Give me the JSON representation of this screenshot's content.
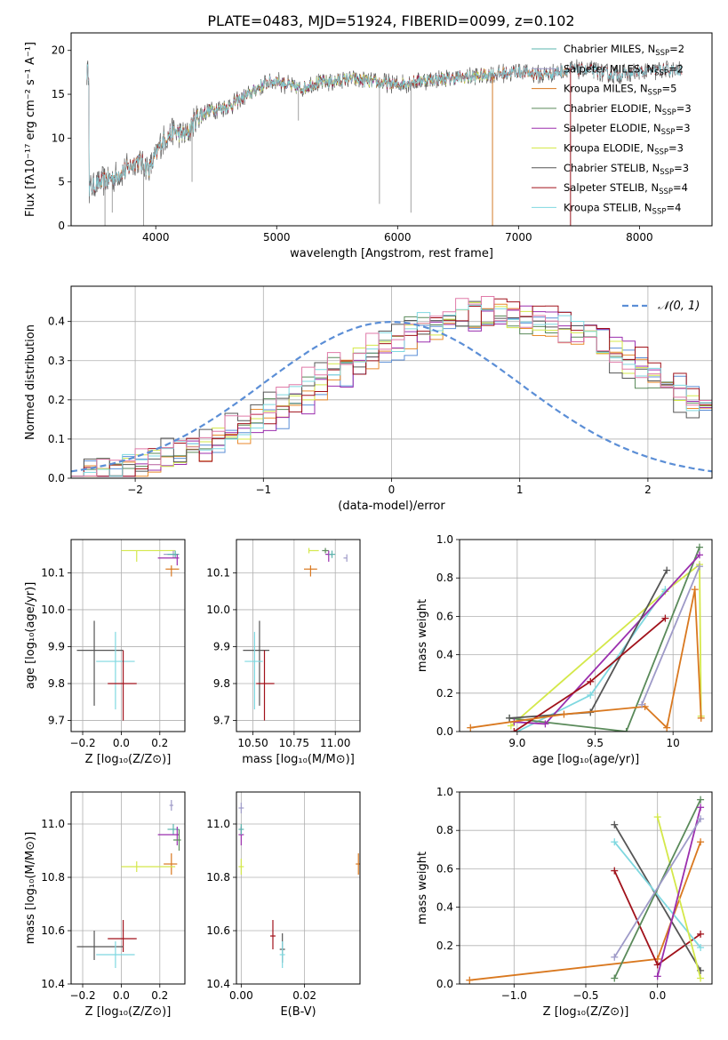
{
  "figure_title": "PLATE=0483, MJD=51924, FIBERID=0099, z=0.102",
  "colors": {
    "Chabrier MILES": "#5ab4ac",
    "Salpeter MILES": "#9e9ac8",
    "Kroupa MILES": "#d9781f",
    "Chabrier ELODIE": "#5a8a5a",
    "Salpeter ELODIE": "#9b2fae",
    "Kroupa ELODIE": "#d4e84a",
    "Chabrier STELIB": "#555555",
    "Salpeter STELIB": "#a1121b",
    "Kroupa STELIB": "#7fd8e0",
    "hist_blue": "#5b8ed6",
    "hist_pink": "#e07aa8",
    "hist_orange": "#e88a2c"
  },
  "chart_data": [
    {
      "id": "spectrum",
      "type": "line",
      "xlabel": "wavelength [Angstrom, rest frame]",
      "ylabel": "Flux [fλ10⁻¹⁷ erg cm⁻² s⁻¹ A⁻¹]",
      "xlim": [
        3300,
        8600
      ],
      "ylim": [
        0,
        22
      ],
      "xticks": [
        4000,
        5000,
        6000,
        7000,
        8000
      ],
      "yticks": [
        0,
        5,
        10,
        15,
        20
      ],
      "grid": false,
      "legend_position": "top-right",
      "continuum": [
        [
          3450,
          4.2
        ],
        [
          3550,
          5.0
        ],
        [
          3650,
          5.5
        ],
        [
          3750,
          6.4
        ],
        [
          3850,
          7.5
        ],
        [
          3950,
          6.5
        ],
        [
          4050,
          9.6
        ],
        [
          4150,
          10.8
        ],
        [
          4250,
          10.3
        ],
        [
          4350,
          12.5
        ],
        [
          4450,
          13.2
        ],
        [
          4600,
          13.6
        ],
        [
          4750,
          14.8
        ],
        [
          4900,
          16.2
        ],
        [
          5000,
          16.6
        ],
        [
          5100,
          16.0
        ],
        [
          5200,
          15.6
        ],
        [
          5300,
          16.2
        ],
        [
          5400,
          16.4
        ],
        [
          5500,
          16.5
        ],
        [
          5600,
          16.8
        ],
        [
          5800,
          16.4
        ],
        [
          6000,
          16.1
        ],
        [
          6200,
          16.6
        ],
        [
          6400,
          16.8
        ],
        [
          6600,
          17.0
        ],
        [
          6800,
          17.3
        ],
        [
          7000,
          17.6
        ],
        [
          7200,
          17.2
        ],
        [
          7400,
          17.8
        ],
        [
          7600,
          17.7
        ],
        [
          7800,
          17.2
        ],
        [
          8000,
          17.5
        ],
        [
          8200,
          17.8
        ],
        [
          8350,
          17.6
        ]
      ],
      "dropouts": [
        [
          3580,
          0
        ],
        [
          3640,
          1.5
        ],
        [
          3900,
          0
        ],
        [
          4300,
          5.0
        ],
        [
          5180,
          12.0
        ],
        [
          5850,
          2.5
        ],
        [
          6110,
          1.5
        ],
        [
          6785,
          0
        ],
        [
          7430,
          0
        ]
      ],
      "legend": [
        {
          "label": "Chabrier MILES, N",
          "sub": "SSP",
          "n": "=2"
        },
        {
          "label": "Salpeter MILES, N",
          "sub": "SSP",
          "n": "=2"
        },
        {
          "label": "Kroupa MILES, N",
          "sub": "SSP",
          "n": "=5"
        },
        {
          "label": "Chabrier ELODIE, N",
          "sub": "SSP",
          "n": "=3"
        },
        {
          "label": "Salpeter ELODIE, N",
          "sub": "SSP",
          "n": "=3"
        },
        {
          "label": "Kroupa ELODIE, N",
          "sub": "SSP",
          "n": "=3"
        },
        {
          "label": "Chabrier STELIB, N",
          "sub": "SSP",
          "n": "=3"
        },
        {
          "label": "Salpeter STELIB, N",
          "sub": "SSP",
          "n": "=4"
        },
        {
          "label": "Kroupa STELIB, N",
          "sub": "SSP",
          "n": "=4"
        }
      ]
    },
    {
      "id": "residuals",
      "type": "histogram",
      "xlabel": "(data-model)/error",
      "ylabel": "Normed distribution",
      "xlim": [
        -2.5,
        2.5
      ],
      "ylim": [
        0,
        0.49
      ],
      "xticks": [
        -2,
        -1,
        0,
        1,
        2
      ],
      "yticks": [
        0.0,
        0.1,
        0.2,
        0.3,
        0.4
      ],
      "grid": true,
      "legend_position": "top-right",
      "legend": "𝒩(0, 1)",
      "bin_width": 0.1,
      "bin_start": -2.5,
      "base_profile": [
        0.02,
        0.022,
        0.027,
        0.03,
        0.036,
        0.04,
        0.049,
        0.055,
        0.065,
        0.072,
        0.085,
        0.1,
        0.115,
        0.13,
        0.15,
        0.17,
        0.19,
        0.2,
        0.22,
        0.24,
        0.26,
        0.28,
        0.3,
        0.31,
        0.33,
        0.35,
        0.37,
        0.385,
        0.395,
        0.405,
        0.41,
        0.415,
        0.42,
        0.42,
        0.415,
        0.41,
        0.405,
        0.4,
        0.38,
        0.37,
        0.355,
        0.34,
        0.32,
        0.3,
        0.28,
        0.26,
        0.24,
        0.22,
        0.2,
        0.18,
        0.16,
        0.14,
        0.125,
        0.11,
        0.095,
        0.085,
        0.075,
        0.065,
        0.055,
        0.05,
        0.045,
        0.04,
        0.035,
        0.032,
        0.03,
        0.028,
        0.025,
        0.023,
        0.02,
        0.018,
        0.015
      ]
    },
    {
      "id": "age-vs-Z",
      "type": "errorbar",
      "xlabel": "Z [log₁₀(Z/Z⊙)]",
      "ylabel": "age  [log₁₀(age/yr)]",
      "xlim": [
        -0.26,
        0.33
      ],
      "ylim": [
        9.67,
        10.19
      ],
      "xticks": [
        -0.2,
        0.0,
        0.2
      ],
      "yticks": [
        9.7,
        9.8,
        9.9,
        10.0,
        10.1
      ],
      "grid": true,
      "points": [
        {
          "s": "Kroupa ELODIE",
          "x": 0.08,
          "y": 10.16,
          "dxl": 0.08,
          "dxh": 0.2,
          "dyl": 0.03,
          "dyh": 0.0
        },
        {
          "s": "Salpeter MILES",
          "x": 0.27,
          "y": 10.15,
          "dxl": 0.05,
          "dxh": 0.02,
          "dyl": 0.01,
          "dyh": 0.01
        },
        {
          "s": "Chabrier MILES",
          "x": 0.28,
          "y": 10.15,
          "dxl": 0.04,
          "dxh": 0.02,
          "dyl": 0.01,
          "dyh": 0.01
        },
        {
          "s": "Salpeter ELODIE",
          "x": 0.29,
          "y": 10.14,
          "dxl": 0.1,
          "dxh": 0.01,
          "dyl": 0.02,
          "dyh": 0.01
        },
        {
          "s": "Kroupa MILES",
          "x": 0.26,
          "y": 10.11,
          "dxl": 0.03,
          "dxh": 0.04,
          "dyl": 0.02,
          "dyh": 0.01
        },
        {
          "s": "Chabrier STELIB",
          "x": -0.14,
          "y": 9.89,
          "dxl": 0.09,
          "dxh": 0.15,
          "dyl": 0.15,
          "dyh": 0.08
        },
        {
          "s": "Kroupa STELIB",
          "x": -0.03,
          "y": 9.86,
          "dxl": 0.1,
          "dxh": 0.1,
          "dyl": 0.13,
          "dyh": 0.08
        },
        {
          "s": "Salpeter STELIB",
          "x": 0.01,
          "y": 9.8,
          "dxl": 0.08,
          "dxh": 0.07,
          "dyl": 0.1,
          "dyh": 0.09
        }
      ]
    },
    {
      "id": "age-vs-mass",
      "type": "errorbar",
      "xlabel": "mass [log₁₀(M/M⊙)]",
      "ylabel": "",
      "xlim": [
        10.4,
        11.15
      ],
      "ylim": [
        9.67,
        10.19
      ],
      "xticks": [
        10.5,
        10.75,
        11.0
      ],
      "xtick_labels": [
        "10.50",
        "10.75",
        "11.00"
      ],
      "yticks": [
        9.7,
        9.8,
        9.9,
        10.0,
        10.1
      ],
      "grid": true,
      "points": [
        {
          "s": "Kroupa ELODIE",
          "x": 10.84,
          "y": 10.16,
          "dxl": 0.0,
          "dxh": 0.06,
          "dyl": 0.0,
          "dyh": 0.0
        },
        {
          "s": "Chabrier ELODIE",
          "x": 10.94,
          "y": 10.16,
          "dxl": 0.02,
          "dxh": 0.02,
          "dyl": 0.0,
          "dyh": 0.0
        },
        {
          "s": "Salpeter ELODIE",
          "x": 10.96,
          "y": 10.15,
          "dxl": 0.02,
          "dxh": 0.02,
          "dyl": 0.02,
          "dyh": 0.01
        },
        {
          "s": "Chabrier MILES",
          "x": 10.98,
          "y": 10.15,
          "dxl": 0.02,
          "dxh": 0.02,
          "dyl": 0.01,
          "dyh": 0.01
        },
        {
          "s": "Salpeter MILES",
          "x": 11.07,
          "y": 10.14,
          "dxl": 0.02,
          "dxh": 0.0,
          "dyl": 0.01,
          "dyh": 0.01
        },
        {
          "s": "Kroupa MILES",
          "x": 10.85,
          "y": 10.11,
          "dxl": 0.04,
          "dxh": 0.04,
          "dyl": 0.02,
          "dyh": 0.01
        },
        {
          "s": "Chabrier STELIB",
          "x": 10.54,
          "y": 9.89,
          "dxl": 0.1,
          "dxh": 0.06,
          "dyl": 0.15,
          "dyh": 0.08
        },
        {
          "s": "Kroupa STELIB",
          "x": 10.51,
          "y": 9.86,
          "dxl": 0.06,
          "dxh": 0.05,
          "dyl": 0.13,
          "dyh": 0.08
        },
        {
          "s": "Salpeter STELIB",
          "x": 10.57,
          "y": 9.8,
          "dxl": 0.05,
          "dxh": 0.06,
          "dyl": 0.1,
          "dyh": 0.09
        }
      ]
    },
    {
      "id": "weight-vs-age",
      "type": "line",
      "xlabel": "age  [log₁₀(age/yr)]",
      "ylabel": "mass weight",
      "xlim": [
        8.63,
        10.25
      ],
      "ylim": [
        0,
        1.0
      ],
      "xticks": [
        9.0,
        9.5,
        10.0
      ],
      "yticks": [
        0.0,
        0.2,
        0.4,
        0.6,
        0.8,
        1.0
      ],
      "grid": true,
      "series": [
        {
          "s": "Kroupa ELODIE",
          "x": [
            8.96,
            9.95,
            10.17,
            10.18
          ],
          "y": [
            0.03,
            0.73,
            0.87,
            0.08
          ]
        },
        {
          "s": "Kroupa STELIB",
          "x": [
            9.0,
            9.47,
            9.95
          ],
          "y": [
            0.0,
            0.19,
            0.74
          ]
        },
        {
          "s": "Chabrier ELODIE",
          "x": [
            8.95,
            9.7,
            10.17
          ],
          "y": [
            0.07,
            0.0,
            0.96
          ]
        },
        {
          "s": "Salpeter ELODIE",
          "x": [
            8.98,
            9.18,
            10.17
          ],
          "y": [
            0.05,
            0.04,
            0.92
          ]
        },
        {
          "s": "Chabrier STELIB",
          "x": [
            8.95,
            9.47,
            9.96
          ],
          "y": [
            0.07,
            0.1,
            0.84
          ]
        },
        {
          "s": "Salpeter STELIB",
          "x": [
            8.98,
            9.47,
            9.95
          ],
          "y": [
            0.0,
            0.26,
            0.59
          ]
        },
        {
          "s": "Kroupa MILES",
          "x": [
            8.7,
            9.3,
            9.82,
            9.96,
            10.14,
            10.18
          ],
          "y": [
            0.02,
            0.09,
            0.13,
            0.02,
            0.74,
            0.07
          ]
        },
        {
          "s": "Salpeter MILES",
          "x": [
            9.8,
            10.17
          ],
          "y": [
            0.14,
            0.86
          ]
        }
      ]
    },
    {
      "id": "mass-vs-Z",
      "type": "errorbar",
      "xlabel": "Z [log₁₀(Z/Z⊙)]",
      "ylabel": "mass [log₁₀(M/M⊙)]",
      "xlim": [
        -0.26,
        0.33
      ],
      "ylim": [
        10.4,
        11.12
      ],
      "xticks": [
        -0.2,
        0.0,
        0.2
      ],
      "yticks": [
        10.4,
        10.6,
        10.8,
        11.0
      ],
      "grid": true,
      "points": [
        {
          "s": "Salpeter MILES",
          "x": 0.26,
          "y": 11.07,
          "dxl": 0.01,
          "dxh": 0.01,
          "dyl": 0.02,
          "dyh": 0.02
        },
        {
          "s": "Chabrier MILES",
          "x": 0.27,
          "y": 10.98,
          "dxl": 0.03,
          "dxh": 0.03,
          "dyl": 0.02,
          "dyh": 0.02
        },
        {
          "s": "Salpeter ELODIE",
          "x": 0.29,
          "y": 10.96,
          "dxl": 0.1,
          "dxh": 0.01,
          "dyl": 0.04,
          "dyh": 0.03
        },
        {
          "s": "Chabrier ELODIE",
          "x": 0.3,
          "y": 10.94,
          "dxl": 0.03,
          "dxh": 0.01,
          "dyl": 0.04,
          "dyh": 0.04
        },
        {
          "s": "Kroupa MILES",
          "x": 0.26,
          "y": 10.85,
          "dxl": 0.04,
          "dxh": 0.03,
          "dyl": 0.04,
          "dyh": 0.04
        },
        {
          "s": "Kroupa ELODIE",
          "x": 0.08,
          "y": 10.84,
          "dxl": 0.08,
          "dxh": 0.2,
          "dyl": 0.02,
          "dyh": 0.02
        },
        {
          "s": "Salpeter STELIB",
          "x": 0.01,
          "y": 10.57,
          "dxl": 0.08,
          "dxh": 0.07,
          "dyl": 0.05,
          "dyh": 0.07
        },
        {
          "s": "Chabrier STELIB",
          "x": -0.14,
          "y": 10.54,
          "dxl": 0.09,
          "dxh": 0.15,
          "dyl": 0.05,
          "dyh": 0.06
        },
        {
          "s": "Kroupa STELIB",
          "x": -0.03,
          "y": 10.51,
          "dxl": 0.1,
          "dxh": 0.1,
          "dyl": 0.05,
          "dyh": 0.05
        }
      ]
    },
    {
      "id": "mass-vs-EBV",
      "type": "errorbar",
      "xlabel": "E(B-V)",
      "ylabel": "",
      "xlim": [
        -0.0015,
        0.0375
      ],
      "ylim": [
        10.4,
        11.12
      ],
      "xticks": [
        0.0,
        0.02
      ],
      "xtick_labels": [
        "0.00",
        "0.02"
      ],
      "yticks": [
        10.4,
        10.6,
        10.8,
        11.0
      ],
      "grid": true,
      "points": [
        {
          "s": "Salpeter MILES",
          "x": 0.0,
          "y": 11.06,
          "dxl": 0,
          "dxh": 0,
          "dyl": 0.02,
          "dyh": 0.02
        },
        {
          "s": "Salpeter ELODIE",
          "x": 0.0,
          "y": 10.96,
          "dxl": 0,
          "dxh": 0,
          "dyl": 0.04,
          "dyh": 0.03
        },
        {
          "s": "Chabrier MILES",
          "x": 0.0,
          "y": 10.98,
          "dxl": 0,
          "dxh": 0,
          "dyl": 0.02,
          "dyh": 0.02
        },
        {
          "s": "Kroupa ELODIE",
          "x": 0.0,
          "y": 10.84,
          "dxl": 0,
          "dxh": 0,
          "dyl": 0.03,
          "dyh": 0.03
        },
        {
          "s": "Kroupa MILES",
          "x": 0.037,
          "y": 10.85,
          "dxl": 0,
          "dxh": 0,
          "dyl": 0.04,
          "dyh": 0.04
        },
        {
          "s": "Salpeter STELIB",
          "x": 0.01,
          "y": 10.58,
          "dxl": 0,
          "dxh": 0,
          "dyl": 0.05,
          "dyh": 0.06
        },
        {
          "s": "Chabrier STELIB",
          "x": 0.013,
          "y": 10.53,
          "dxl": 0,
          "dxh": 0,
          "dyl": 0.05,
          "dyh": 0.06
        },
        {
          "s": "Kroupa STELIB",
          "x": 0.013,
          "y": 10.51,
          "dxl": 0,
          "dxh": 0,
          "dyl": 0.05,
          "dyh": 0.05
        }
      ]
    },
    {
      "id": "weight-vs-Z",
      "type": "line",
      "xlabel": "Z [log₁₀(Z/Z⊙)]",
      "ylabel": "mass weight",
      "xlim": [
        -1.38,
        0.38
      ],
      "ylim": [
        0,
        1.0
      ],
      "xticks": [
        -1.0,
        -0.5,
        0.0
      ],
      "yticks": [
        0.0,
        0.2,
        0.4,
        0.6,
        0.8,
        1.0
      ],
      "grid": true,
      "series": [
        {
          "s": "Kroupa MILES",
          "x": [
            -1.31,
            0.0,
            0.3
          ],
          "y": [
            0.02,
            0.13,
            0.74
          ]
        },
        {
          "s": "Salpeter STELIB",
          "x": [
            -0.3,
            0.0,
            0.3
          ],
          "y": [
            0.59,
            0.1,
            0.26
          ]
        },
        {
          "s": "Chabrier STELIB",
          "x": [
            -0.3,
            0.3
          ],
          "y": [
            0.83,
            0.07
          ]
        },
        {
          "s": "Kroupa STELIB",
          "x": [
            -0.3,
            0.3
          ],
          "y": [
            0.74,
            0.19
          ]
        },
        {
          "s": "Kroupa ELODIE",
          "x": [
            0.0,
            0.3
          ],
          "y": [
            0.87,
            0.03
          ]
        },
        {
          "s": "Chabrier ELODIE",
          "x": [
            -0.3,
            0.3
          ],
          "y": [
            0.03,
            0.96
          ]
        },
        {
          "s": "Salpeter ELODIE",
          "x": [
            0.0,
            0.3
          ],
          "y": [
            0.04,
            0.92
          ]
        },
        {
          "s": "Salpeter MILES",
          "x": [
            -0.3,
            0.3
          ],
          "y": [
            0.14,
            0.86
          ]
        }
      ]
    }
  ]
}
